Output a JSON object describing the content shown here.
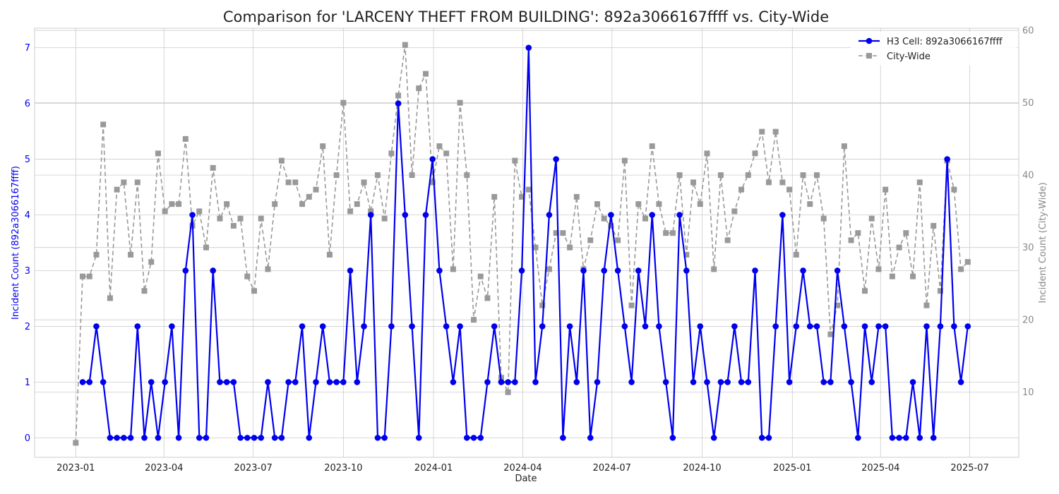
{
  "chart_data": {
    "type": "line",
    "title": "Comparison for 'LARCENY THEFT FROM BUILDING': 892a3066167ffff vs. City-Wide",
    "xlabel": "Date",
    "ylabel_left": "Incident Count (892a3066167ffff)",
    "ylabel_right": "Incident Count (City-Wide)",
    "x_start": "2023-01-01",
    "x_interval_days": 7,
    "xlim": [
      "2022-11-20",
      "2025-08-20"
    ],
    "x_ticks": [
      "2023-01",
      "2023-04",
      "2023-07",
      "2023-10",
      "2024-01",
      "2024-04",
      "2024-07",
      "2024-10",
      "2025-01",
      "2025-04",
      "2025-07"
    ],
    "ylim_left": [
      -0.35,
      7.35
    ],
    "ylim_right": [
      1.0,
      60.3
    ],
    "y_ticks_left": [
      0,
      1,
      2,
      3,
      4,
      5,
      6,
      7
    ],
    "y_ticks_right": [
      10,
      20,
      30,
      40,
      50,
      60
    ],
    "grid": true,
    "legend_position": "top-right",
    "colors": {
      "cell": "#0000ee",
      "city": "#999999",
      "left_axis": "#0000ee",
      "right_axis": "#888888"
    },
    "series": [
      {
        "name": "H3 Cell: 892a3066167ffff",
        "axis": "left",
        "style": "solid-circle",
        "values": [
          null,
          1,
          1,
          2,
          1,
          0,
          0,
          0,
          0,
          2,
          0,
          1,
          0,
          1,
          2,
          0,
          3,
          4,
          0,
          0,
          3,
          1,
          1,
          1,
          0,
          0,
          0,
          0,
          1,
          0,
          0,
          1,
          1,
          2,
          0,
          1,
          2,
          1,
          1,
          1,
          3,
          1,
          2,
          4,
          0,
          0,
          2,
          6,
          4,
          2,
          0,
          4,
          5,
          3,
          2,
          1,
          2,
          0,
          0,
          0,
          1,
          2,
          1,
          1,
          1,
          3,
          7,
          1,
          2,
          4,
          5,
          0,
          2,
          1,
          3,
          0,
          1,
          3,
          4,
          3,
          2,
          1,
          3,
          2,
          4,
          2,
          1,
          0,
          4,
          3,
          1,
          2,
          1,
          0,
          1,
          1,
          2,
          1,
          1,
          3,
          0,
          0,
          2,
          4,
          1,
          2,
          3,
          2,
          2,
          1,
          1,
          3,
          2,
          1,
          0,
          2,
          1,
          2,
          2,
          0,
          0,
          0,
          1,
          0,
          2,
          0,
          2,
          5,
          2,
          1,
          2
        ]
      },
      {
        "name": "City-Wide",
        "axis": "right",
        "style": "dashed-square",
        "values": [
          3,
          26,
          26,
          29,
          47,
          23,
          38,
          39,
          29,
          39,
          24,
          28,
          43,
          35,
          36,
          36,
          45,
          33,
          35,
          30,
          41,
          34,
          36,
          33,
          34,
          26,
          24,
          34,
          27,
          36,
          42,
          39,
          39,
          36,
          37,
          38,
          44,
          29,
          40,
          50,
          35,
          36,
          39,
          35,
          40,
          34,
          43,
          51,
          58,
          40,
          52,
          54,
          39,
          44,
          43,
          27,
          50,
          40,
          20,
          26,
          23,
          37,
          12,
          10,
          42,
          37,
          38,
          30,
          22,
          27,
          32,
          32,
          30,
          37,
          27,
          31,
          36,
          34,
          33,
          31,
          42,
          22,
          36,
          34,
          44,
          36,
          32,
          32,
          40,
          29,
          39,
          36,
          43,
          27,
          40,
          31,
          35,
          38,
          40,
          43,
          46,
          39,
          46,
          39,
          38,
          29,
          40,
          36,
          40,
          34,
          18,
          22,
          44,
          31,
          32,
          24,
          34,
          27,
          38,
          26,
          30,
          32,
          26,
          39,
          22,
          33,
          24,
          42,
          38,
          27,
          28
        ]
      }
    ]
  }
}
